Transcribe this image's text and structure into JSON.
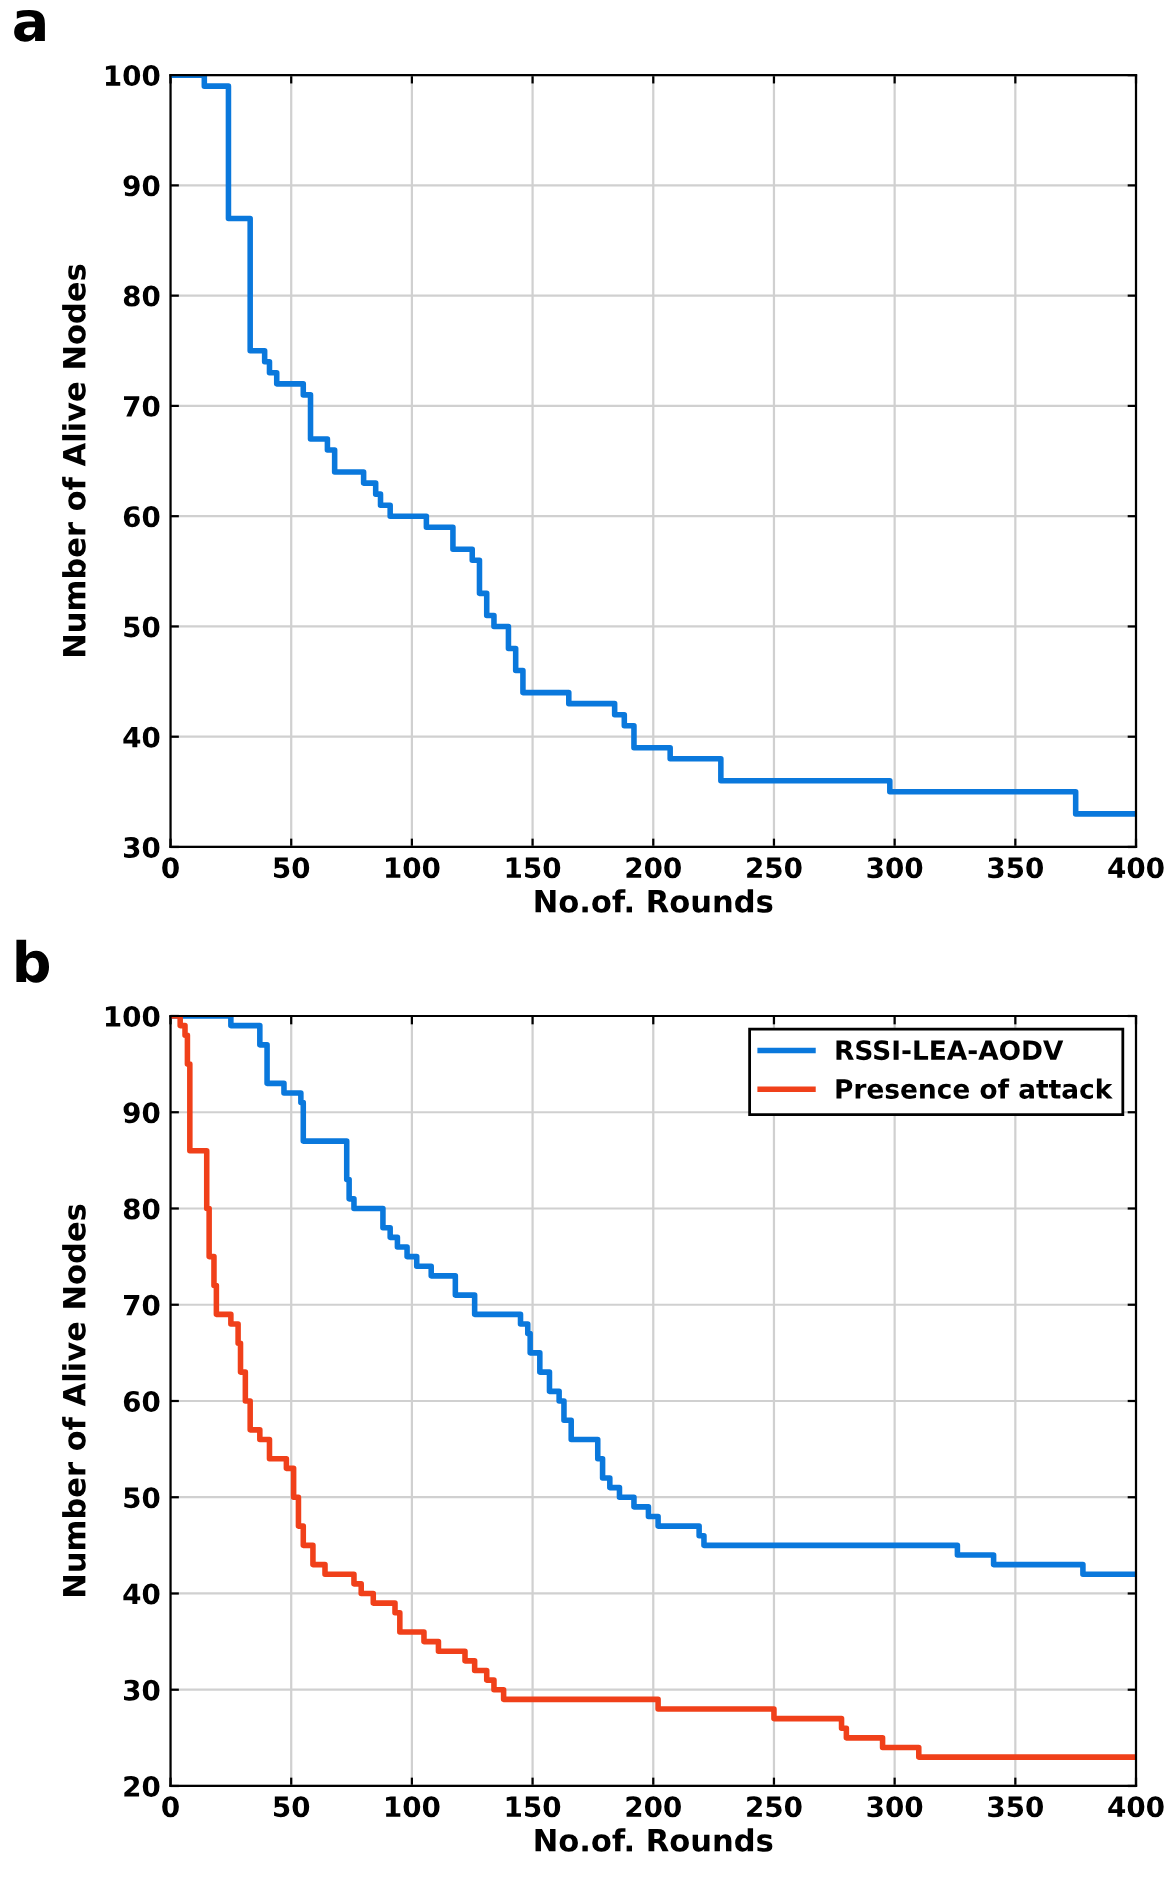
{
  "chart_data": [
    {
      "type": "step",
      "title": "a",
      "xlabel": "No.of. Rounds",
      "ylabel": "Number of Alive Nodes",
      "xlim": [
        0,
        400
      ],
      "ylim": [
        30,
        100
      ],
      "xticks": [
        0,
        50,
        100,
        150,
        200,
        250,
        300,
        350,
        400
      ],
      "yticks": [
        30,
        40,
        50,
        60,
        70,
        80,
        90,
        100
      ],
      "grid": true,
      "legend": false,
      "series": [
        {
          "color": "#0a78dc",
          "x": [
            0,
            14,
            24,
            33,
            39,
            41,
            44,
            55,
            58,
            65,
            68,
            80,
            85,
            87,
            91,
            106,
            117,
            125,
            128,
            131,
            134,
            140,
            143,
            146,
            165,
            181,
            184,
            188,
            192,
            207,
            225,
            228,
            298,
            375,
            400
          ],
          "values": [
            100,
            99,
            87,
            75,
            74,
            73,
            72,
            71,
            67,
            66,
            64,
            63,
            62,
            61,
            60,
            59,
            57,
            56,
            53,
            51,
            50,
            48,
            46,
            44,
            43,
            43,
            42,
            41,
            39,
            38,
            38,
            36,
            35,
            33,
            33
          ]
        }
      ]
    },
    {
      "type": "step",
      "title": "b",
      "xlabel": "No.of. Rounds",
      "ylabel": "Number of Alive Nodes",
      "xlim": [
        0,
        400
      ],
      "ylim": [
        20,
        100
      ],
      "xticks": [
        0,
        50,
        100,
        150,
        200,
        250,
        300,
        350,
        400
      ],
      "yticks": [
        20,
        30,
        40,
        50,
        60,
        70,
        80,
        90,
        100
      ],
      "grid": true,
      "legend": "top right",
      "series": [
        {
          "name": "RSSI-LEA-AODV",
          "color": "#0a78dc",
          "x": [
            0,
            25,
            37,
            40,
            47,
            54,
            55,
            72,
            73,
            74,
            76,
            86,
            88,
            91,
            94,
            98,
            102,
            108,
            116,
            118,
            126,
            141,
            145,
            148,
            149,
            153,
            157,
            161,
            163,
            166,
            173,
            177,
            179,
            182,
            186,
            192,
            198,
            202,
            219,
            221,
            326,
            341,
            378,
            400
          ],
          "values": [
            100,
            99,
            97,
            93,
            92,
            91,
            87,
            87,
            83,
            81,
            80,
            80,
            78,
            77,
            76,
            75,
            74,
            73,
            73,
            71,
            69,
            69,
            68,
            67,
            65,
            63,
            61,
            60,
            58,
            56,
            56,
            54,
            52,
            51,
            50,
            49,
            48,
            47,
            46,
            45,
            44,
            43,
            42,
            42
          ]
        },
        {
          "name": "Presence of attack",
          "color": "#f0401a",
          "x": [
            0,
            4,
            6,
            7,
            8,
            14,
            15,
            16,
            18,
            19,
            25,
            28,
            29,
            31,
            33,
            37,
            41,
            48,
            51,
            53,
            55,
            59,
            64,
            73,
            76,
            79,
            84,
            93,
            95,
            103,
            105,
            111,
            122,
            126,
            131,
            134,
            138,
            202,
            250,
            277,
            278,
            280,
            295,
            310,
            400
          ],
          "values": [
            100,
            99,
            98,
            95,
            86,
            86,
            80,
            75,
            72,
            69,
            68,
            66,
            63,
            60,
            57,
            56,
            54,
            53,
            50,
            47,
            45,
            43,
            42,
            42,
            41,
            40,
            39,
            38,
            36,
            36,
            35,
            34,
            33,
            32,
            31,
            30,
            29,
            28,
            27,
            27,
            26,
            25,
            24,
            23,
            23
          ]
        }
      ]
    }
  ]
}
